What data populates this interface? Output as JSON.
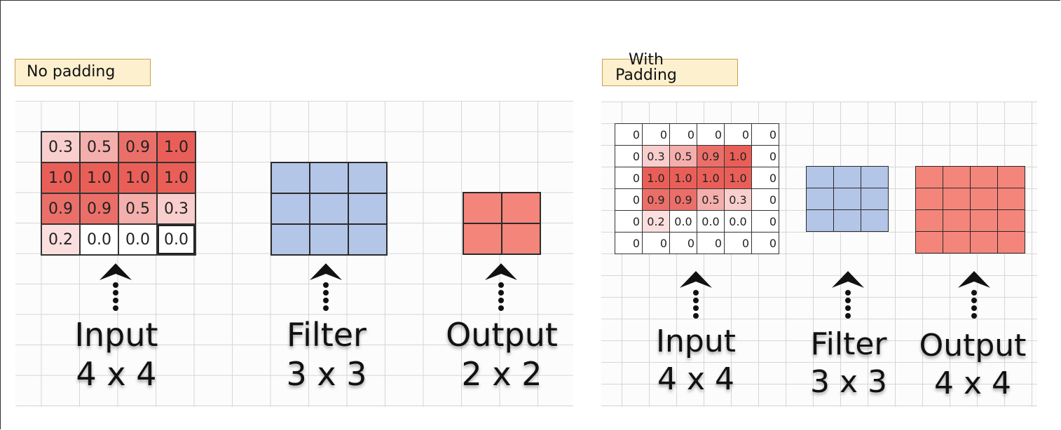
{
  "left": {
    "tag": "No padding",
    "input_grid": [
      [
        "0.3",
        "0.5",
        "0.9",
        "1.0"
      ],
      [
        "1.0",
        "1.0",
        "1.0",
        "1.0"
      ],
      [
        "0.9",
        "0.9",
        "0.5",
        "0.3"
      ],
      [
        "0.2",
        "0.0",
        "0.0",
        "0.0"
      ]
    ],
    "filter_size": [
      3,
      3
    ],
    "output_size": [
      2,
      2
    ],
    "labels": {
      "input": "Input",
      "input_dim": "4 x 4",
      "filter": "Filter",
      "filter_dim": "3 x 3",
      "output": "Output",
      "output_dim": "2 x 2"
    }
  },
  "right": {
    "tag": "With Padding",
    "input_grid": [
      [
        "0",
        "0",
        "0",
        "0",
        "0",
        "0"
      ],
      [
        "0",
        "0.3",
        "0.5",
        "0.9",
        "1.0",
        "0"
      ],
      [
        "0",
        "1.0",
        "1.0",
        "1.0",
        "1.0",
        "0"
      ],
      [
        "0",
        "0.9",
        "0.9",
        "0.5",
        "0.3",
        "0"
      ],
      [
        "0",
        "0.2",
        "0.0",
        "0.0",
        "0.0",
        "0"
      ],
      [
        "0",
        "0",
        "0",
        "0",
        "0",
        "0"
      ]
    ],
    "filter_size": [
      3,
      3
    ],
    "output_size": [
      4,
      4
    ],
    "labels": {
      "input": "Input",
      "input_dim": "4 x 4",
      "filter": "Filter",
      "filter_dim": "3 x 3",
      "output": "Output",
      "output_dim": "4 x 4"
    }
  },
  "colors": {
    "filter": "#b4c6e7",
    "output": "#f4857a",
    "tag_bg": "#fdf0cf",
    "tag_border": "#c9a24a"
  }
}
